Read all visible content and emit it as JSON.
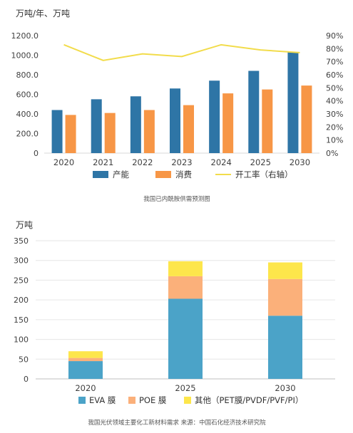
{
  "chart_data": [
    {
      "type": "bar",
      "unit_label": "万吨/年、万吨",
      "categories": [
        "2020",
        "2021",
        "2022",
        "2023",
        "2024",
        "2025",
        "2030"
      ],
      "series": [
        {
          "name": "产能",
          "type": "bar",
          "axis": "left",
          "color": "#2E75A6",
          "values": [
            440,
            550,
            580,
            660,
            740,
            840,
            1030
          ]
        },
        {
          "name": "消费",
          "type": "bar",
          "axis": "left",
          "color": "#F79646",
          "values": [
            390,
            410,
            440,
            490,
            610,
            650,
            690
          ]
        },
        {
          "name": "开工率（右轴）",
          "type": "line",
          "axis": "right",
          "color": "#F2DC4B",
          "values": [
            83,
            71,
            76,
            74,
            83,
            79,
            77
          ]
        }
      ],
      "y_left": {
        "min": 0,
        "max": 1200,
        "ticks": [
          "0",
          "200.0",
          "400.0",
          "600.0",
          "800.0",
          "1000.0",
          "1200.0"
        ]
      },
      "y_right": {
        "min": 0,
        "max": 90,
        "ticks": [
          "0%",
          "10%",
          "20%",
          "30%",
          "40%",
          "50%",
          "60%",
          "70%",
          "80%",
          "90%"
        ]
      },
      "grid": false,
      "legend_position": "bottom",
      "caption": "我国已内酰胺供需预测图"
    },
    {
      "type": "bar",
      "stacked": true,
      "unit_label": "万吨",
      "categories": [
        "2020",
        "2025",
        "2030"
      ],
      "series": [
        {
          "name": "EVA 膜",
          "color": "#4BA3C8",
          "values": [
            45,
            203,
            160
          ]
        },
        {
          "name": "POE 膜",
          "color": "#FBB07A",
          "values": [
            8,
            57,
            93
          ]
        },
        {
          "name": "其他（PET膜/PVDF/PVF/PI）",
          "color": "#FDE64B",
          "values": [
            17,
            38,
            42
          ]
        }
      ],
      "y": {
        "min": 0,
        "max": 350,
        "ticks": [
          "0",
          "50",
          "100",
          "150",
          "200",
          "250",
          "300",
          "350"
        ]
      },
      "grid": true,
      "legend_position": "bottom",
      "caption": "我国光伏领域主要化工新材料需求 来源：中国石化经济技术研究院"
    }
  ]
}
